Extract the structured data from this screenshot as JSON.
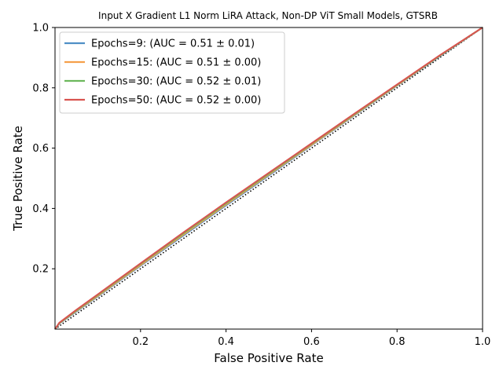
{
  "chart_data": {
    "type": "line",
    "title": "Input X Gradient L1 Norm LiRA Attack, Non-DP ViT Small Models, GTSRB",
    "xlabel": "False Positive Rate",
    "ylabel": "True Positive Rate",
    "xlim": [
      0,
      1
    ],
    "ylim": [
      0,
      1
    ],
    "xticks": [
      "0.2",
      "0.4",
      "0.6",
      "0.8",
      "1.0"
    ],
    "yticks": [
      "0.2",
      "0.4",
      "0.6",
      "0.8",
      "1.0"
    ],
    "grid": false,
    "legend_position": "top-left",
    "series": [
      {
        "name": "Epochs=9: (AUC = 0.51 ± 0.01)",
        "color": "#4f8fc6",
        "x": [
          0,
          0.01,
          0.05,
          0.1,
          0.2,
          0.3,
          0.4,
          0.5,
          0.6,
          0.7,
          0.8,
          0.9,
          1.0
        ],
        "y": [
          0,
          0.018,
          0.058,
          0.108,
          0.21,
          0.31,
          0.41,
          0.509,
          0.609,
          0.708,
          0.807,
          0.905,
          1.0
        ]
      },
      {
        "name": "Epochs=15: (AUC = 0.51 ± 0.00)",
        "color": "#f5a04a",
        "x": [
          0,
          0.01,
          0.05,
          0.1,
          0.2,
          0.3,
          0.4,
          0.5,
          0.6,
          0.7,
          0.8,
          0.9,
          1.0
        ],
        "y": [
          0,
          0.019,
          0.06,
          0.11,
          0.212,
          0.313,
          0.413,
          0.512,
          0.611,
          0.71,
          0.808,
          0.906,
          1.0
        ]
      },
      {
        "name": "Epochs=30: (AUC = 0.52 ± 0.01)",
        "color": "#6cb85c",
        "x": [
          0,
          0.01,
          0.05,
          0.1,
          0.2,
          0.3,
          0.4,
          0.5,
          0.6,
          0.7,
          0.8,
          0.9,
          1.0
        ],
        "y": [
          0,
          0.02,
          0.062,
          0.113,
          0.216,
          0.317,
          0.417,
          0.515,
          0.614,
          0.712,
          0.81,
          0.907,
          1.0
        ]
      },
      {
        "name": "Epochs=50: (AUC = 0.52 ± 0.00)",
        "color": "#d9534f",
        "x": [
          0,
          0.01,
          0.05,
          0.1,
          0.2,
          0.3,
          0.4,
          0.5,
          0.6,
          0.7,
          0.8,
          0.9,
          1.0
        ],
        "y": [
          0,
          0.021,
          0.064,
          0.115,
          0.218,
          0.32,
          0.42,
          0.518,
          0.616,
          0.714,
          0.811,
          0.908,
          1.0
        ]
      }
    ],
    "reference_line": {
      "color": "#000000",
      "style": "dotted",
      "x": [
        0,
        1
      ],
      "y": [
        0,
        1
      ]
    }
  }
}
